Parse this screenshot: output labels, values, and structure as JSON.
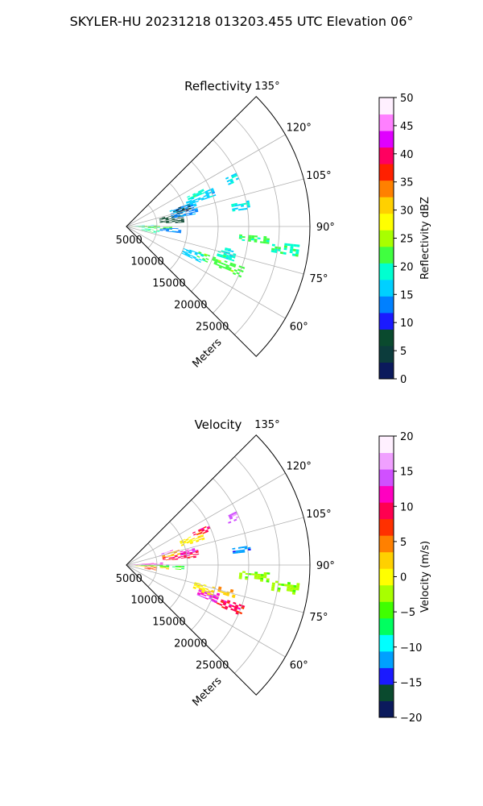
{
  "figure": {
    "suptitle": "SKYLER-HU  20231218  013203.455 UTC Elevation 06°"
  },
  "chart_data": [
    {
      "type": "polar_sector",
      "title": "Reflectivity",
      "range_label": "Meters",
      "azimuth_limits_deg": [
        45,
        135
      ],
      "range_limits_m": [
        0,
        30000
      ],
      "range_ticks": [
        5000,
        10000,
        15000,
        20000,
        25000
      ],
      "range_tick_labels": [
        "5000",
        "10000",
        "15000",
        "20000",
        "25000"
      ],
      "azimuth_ticks_deg": [
        60,
        75,
        90,
        105,
        120,
        135
      ],
      "azimuth_tick_labels": [
        "60°",
        "75°",
        "90°",
        "105°",
        "120°",
        "135°"
      ],
      "grid": true,
      "colorbar": {
        "label": "Reflectivity dBZ",
        "vmin": 0,
        "vmax": 50,
        "ticks": [
          0,
          5,
          10,
          15,
          20,
          25,
          30,
          35,
          40,
          45,
          50
        ],
        "tick_labels": [
          "0",
          "5",
          "10",
          "15",
          "20",
          "25",
          "30",
          "35",
          "40",
          "45",
          "50"
        ],
        "colormap": [
          "#0b1a5c",
          "#0c3c3c",
          "#0a4a2e",
          "#1a1aff",
          "#0080ff",
          "#00d0ff",
          "#00ffd0",
          "#40ff40",
          "#a8ff00",
          "#ffff00",
          "#ffd000",
          "#ff8000",
          "#ff2000",
          "#ff0060",
          "#e000ff",
          "#ff80ff",
          "#fff0ff"
        ]
      },
      "echo_regions": [
        {
          "az": [
            66,
            71
          ],
          "range": [
            12500,
            20500
          ],
          "value": 22
        },
        {
          "az": [
            64,
            70
          ],
          "range": [
            10000,
            13500
          ],
          "value": 16
        },
        {
          "az": [
            72,
            76
          ],
          "range": [
            15500,
            18500
          ],
          "value": 19
        },
        {
          "az": [
            74,
            78
          ],
          "range": [
            16500,
            18000
          ],
          "value": 18
        },
        {
          "az": [
            83,
            86
          ],
          "range": [
            18500,
            23500
          ],
          "value": 21
        },
        {
          "az": [
            80,
            84
          ],
          "range": [
            24000,
            28500
          ],
          "value": 20
        },
        {
          "az": [
            86,
            90
          ],
          "range": [
            2000,
            7500
          ],
          "value": 21
        },
        {
          "az": [
            88,
            92
          ],
          "range": [
            800,
            5500
          ],
          "value": 23
        },
        {
          "az": [
            77,
            84
          ],
          "range": [
            2500,
            5500
          ],
          "value": 20
        },
        {
          "az": [
            91,
            94
          ],
          "range": [
            1000,
            5000
          ],
          "value": 17
        },
        {
          "az": [
            83,
            88
          ],
          "range": [
            5500,
            9000
          ],
          "value": 13
        },
        {
          "az": [
            94,
            104
          ],
          "range": [
            5500,
            9500
          ],
          "value": 7
        },
        {
          "az": [
            100,
            110
          ],
          "range": [
            7500,
            12000
          ],
          "value": 14
        },
        {
          "az": [
            104,
            110
          ],
          "range": [
            8000,
            11000
          ],
          "value": 4
        },
        {
          "az": [
            109,
            114
          ],
          "range": [
            10500,
            15500
          ],
          "value": 16
        },
        {
          "az": [
            113,
            116
          ],
          "range": [
            11000,
            14000
          ],
          "value": 19
        },
        {
          "az": [
            98,
            102
          ],
          "range": [
            17500,
            20500
          ],
          "value": 18
        },
        {
          "az": [
            112,
            116
          ],
          "range": [
            18000,
            20000
          ],
          "value": 17
        }
      ]
    },
    {
      "type": "polar_sector",
      "title": "Velocity",
      "range_label": "Meters",
      "azimuth_limits_deg": [
        45,
        135
      ],
      "range_limits_m": [
        0,
        30000
      ],
      "range_ticks": [
        5000,
        10000,
        15000,
        20000,
        25000
      ],
      "range_tick_labels": [
        "5000",
        "10000",
        "15000",
        "20000",
        "25000"
      ],
      "azimuth_ticks_deg": [
        60,
        75,
        90,
        105,
        120,
        135
      ],
      "azimuth_tick_labels": [
        "60°",
        "75°",
        "90°",
        "105°",
        "120°",
        "135°"
      ],
      "grid": true,
      "colorbar": {
        "label": "Velocity (m/s)",
        "vmin": -20,
        "vmax": 20,
        "ticks": [
          -20,
          -15,
          -10,
          -5,
          0,
          5,
          10,
          15,
          20
        ],
        "tick_labels": [
          "−20",
          "−15",
          "−10",
          "−5",
          "0",
          "5",
          "10",
          "15",
          "20"
        ],
        "colormap": [
          "#0b1a5c",
          "#0a4a2e",
          "#1a1aff",
          "#00a0ff",
          "#00ffff",
          "#00ff60",
          "#40ff00",
          "#a8ff00",
          "#ffff00",
          "#ffd000",
          "#ff8000",
          "#ff3000",
          "#ff0050",
          "#ff00c0",
          "#d050ff",
          "#f0a0ff",
          "#fff0ff"
        ]
      },
      "echo_regions": [
        {
          "az": [
            66,
            71
          ],
          "range": [
            15500,
            20500
          ],
          "value": 9
        },
        {
          "az": [
            67,
            73
          ],
          "range": [
            12500,
            16000
          ],
          "value": 13
        },
        {
          "az": [
            70,
            76
          ],
          "range": [
            11500,
            15000
          ],
          "value": 1
        },
        {
          "az": [
            73,
            77
          ],
          "range": [
            15500,
            18500
          ],
          "value": 3
        },
        {
          "az": [
            83,
            87
          ],
          "range": [
            18500,
            23500
          ],
          "value": -3
        },
        {
          "az": [
            80,
            84
          ],
          "range": [
            24000,
            28500
          ],
          "value": -3
        },
        {
          "az": [
            84,
            89
          ],
          "range": [
            1500,
            7000
          ],
          "value": 2
        },
        {
          "az": [
            87,
            89.5
          ],
          "range": [
            300,
            7000
          ],
          "value": -6
        },
        {
          "az": [
            89.5,
            91
          ],
          "range": [
            300,
            7000
          ],
          "value": 16
        },
        {
          "az": [
            91,
            94
          ],
          "range": [
            500,
            6000
          ],
          "value": 13
        },
        {
          "az": [
            79,
            85
          ],
          "range": [
            3000,
            5000
          ],
          "value": 7
        },
        {
          "az": [
            85,
            89
          ],
          "range": [
            7500,
            9500
          ],
          "value": -6
        },
        {
          "az": [
            96,
            102
          ],
          "range": [
            6000,
            12000
          ],
          "value": 9
        },
        {
          "az": [
            100,
            104
          ],
          "range": [
            9000,
            11500
          ],
          "value": 13
        },
        {
          "az": [
            101,
            106
          ],
          "range": [
            6000,
            9000
          ],
          "value": 3
        },
        {
          "az": [
            108,
            114
          ],
          "range": [
            9500,
            13500
          ],
          "value": 1
        },
        {
          "az": [
            112,
            116
          ],
          "range": [
            12000,
            15000
          ],
          "value": 9
        },
        {
          "az": [
            105,
            108
          ],
          "range": [
            5500,
            8000
          ],
          "value": 14
        },
        {
          "az": [
            96,
            99
          ],
          "range": [
            17500,
            20500
          ],
          "value": -12
        },
        {
          "az": [
            112,
            116
          ],
          "range": [
            18000,
            20000
          ],
          "value": 14
        }
      ]
    }
  ]
}
